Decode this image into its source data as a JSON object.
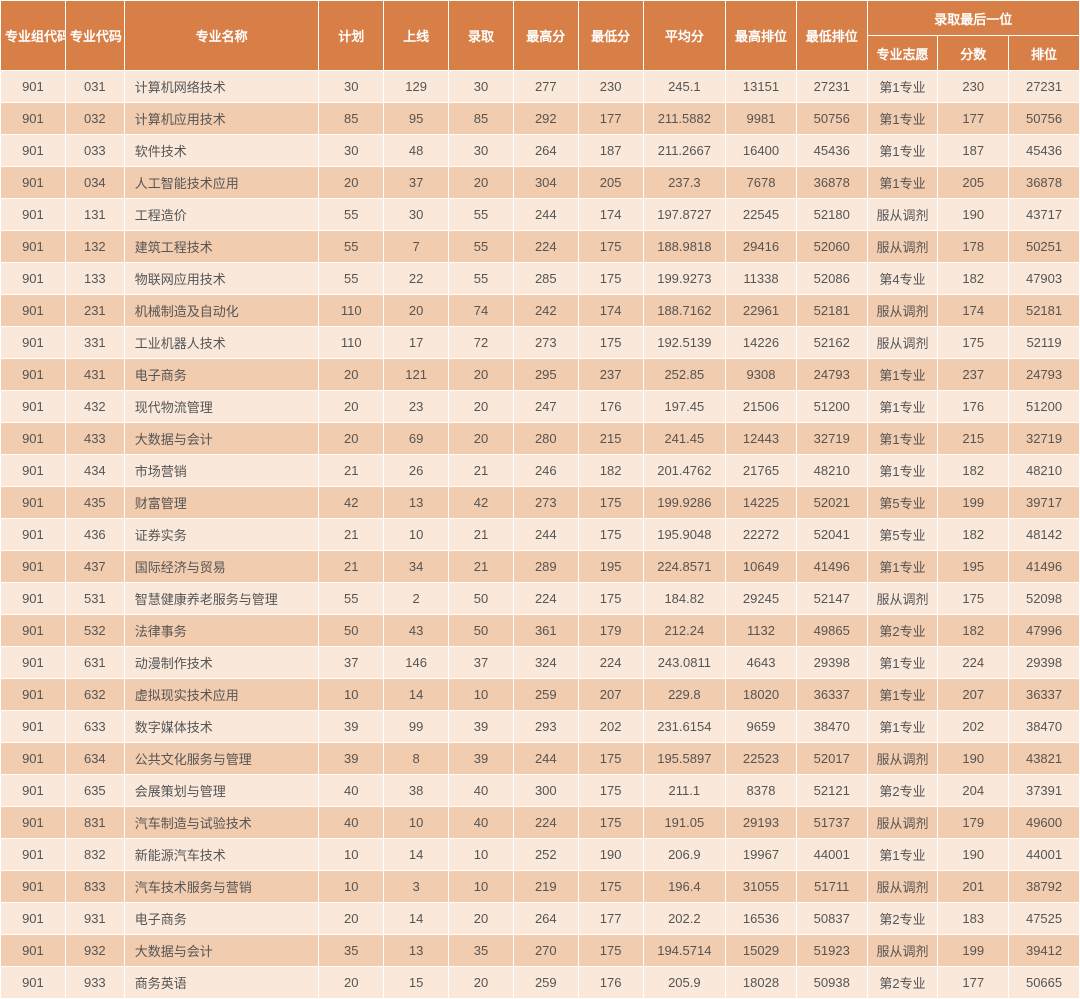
{
  "table": {
    "header": {
      "group_code": "专业组代码",
      "major_code": "专业代码",
      "major_name": "专业名称",
      "plan": "计划",
      "online": "上线",
      "admit": "录取",
      "max_score": "最高分",
      "min_score": "最低分",
      "avg_score": "平均分",
      "max_rank": "最高排位",
      "min_rank": "最低排位",
      "last_group": "录取最后一位",
      "last_pref": "专业志愿",
      "last_score": "分数",
      "last_rank": "排位"
    },
    "colors": {
      "header_bg": "#d77f46",
      "header_fg": "#ffffff",
      "row_odd_bg": "#fae9db",
      "row_even_bg": "#f2ccae",
      "cell_fg": "#555555",
      "border": "#ffffff"
    },
    "rows": [
      {
        "group": "901",
        "code": "031",
        "name": "计算机网络技术",
        "plan": "30",
        "online": "129",
        "admit": "30",
        "max": "277",
        "min": "230",
        "avg": "245.1",
        "maxrank": "13151",
        "minrank": "27231",
        "pref": "第1专业",
        "lscore": "230",
        "lrank": "27231"
      },
      {
        "group": "901",
        "code": "032",
        "name": "计算机应用技术",
        "plan": "85",
        "online": "95",
        "admit": "85",
        "max": "292",
        "min": "177",
        "avg": "211.5882",
        "maxrank": "9981",
        "minrank": "50756",
        "pref": "第1专业",
        "lscore": "177",
        "lrank": "50756"
      },
      {
        "group": "901",
        "code": "033",
        "name": "软件技术",
        "plan": "30",
        "online": "48",
        "admit": "30",
        "max": "264",
        "min": "187",
        "avg": "211.2667",
        "maxrank": "16400",
        "minrank": "45436",
        "pref": "第1专业",
        "lscore": "187",
        "lrank": "45436"
      },
      {
        "group": "901",
        "code": "034",
        "name": "人工智能技术应用",
        "plan": "20",
        "online": "37",
        "admit": "20",
        "max": "304",
        "min": "205",
        "avg": "237.3",
        "maxrank": "7678",
        "minrank": "36878",
        "pref": "第1专业",
        "lscore": "205",
        "lrank": "36878"
      },
      {
        "group": "901",
        "code": "131",
        "name": "工程造价",
        "plan": "55",
        "online": "30",
        "admit": "55",
        "max": "244",
        "min": "174",
        "avg": "197.8727",
        "maxrank": "22545",
        "minrank": "52180",
        "pref": "服从调剂",
        "lscore": "190",
        "lrank": "43717"
      },
      {
        "group": "901",
        "code": "132",
        "name": "建筑工程技术",
        "plan": "55",
        "online": "7",
        "admit": "55",
        "max": "224",
        "min": "175",
        "avg": "188.9818",
        "maxrank": "29416",
        "minrank": "52060",
        "pref": "服从调剂",
        "lscore": "178",
        "lrank": "50251"
      },
      {
        "group": "901",
        "code": "133",
        "name": "物联网应用技术",
        "plan": "55",
        "online": "22",
        "admit": "55",
        "max": "285",
        "min": "175",
        "avg": "199.9273",
        "maxrank": "11338",
        "minrank": "52086",
        "pref": "第4专业",
        "lscore": "182",
        "lrank": "47903"
      },
      {
        "group": "901",
        "code": "231",
        "name": "机械制造及自动化",
        "plan": "110",
        "online": "20",
        "admit": "74",
        "max": "242",
        "min": "174",
        "avg": "188.7162",
        "maxrank": "22961",
        "minrank": "52181",
        "pref": "服从调剂",
        "lscore": "174",
        "lrank": "52181"
      },
      {
        "group": "901",
        "code": "331",
        "name": "工业机器人技术",
        "plan": "110",
        "online": "17",
        "admit": "72",
        "max": "273",
        "min": "175",
        "avg": "192.5139",
        "maxrank": "14226",
        "minrank": "52162",
        "pref": "服从调剂",
        "lscore": "175",
        "lrank": "52119"
      },
      {
        "group": "901",
        "code": "431",
        "name": "电子商务",
        "plan": "20",
        "online": "121",
        "admit": "20",
        "max": "295",
        "min": "237",
        "avg": "252.85",
        "maxrank": "9308",
        "minrank": "24793",
        "pref": "第1专业",
        "lscore": "237",
        "lrank": "24793"
      },
      {
        "group": "901",
        "code": "432",
        "name": "现代物流管理",
        "plan": "20",
        "online": "23",
        "admit": "20",
        "max": "247",
        "min": "176",
        "avg": "197.45",
        "maxrank": "21506",
        "minrank": "51200",
        "pref": "第1专业",
        "lscore": "176",
        "lrank": "51200"
      },
      {
        "group": "901",
        "code": "433",
        "name": "大数据与会计",
        "plan": "20",
        "online": "69",
        "admit": "20",
        "max": "280",
        "min": "215",
        "avg": "241.45",
        "maxrank": "12443",
        "minrank": "32719",
        "pref": "第1专业",
        "lscore": "215",
        "lrank": "32719"
      },
      {
        "group": "901",
        "code": "434",
        "name": "市场营销",
        "plan": "21",
        "online": "26",
        "admit": "21",
        "max": "246",
        "min": "182",
        "avg": "201.4762",
        "maxrank": "21765",
        "minrank": "48210",
        "pref": "第1专业",
        "lscore": "182",
        "lrank": "48210"
      },
      {
        "group": "901",
        "code": "435",
        "name": "财富管理",
        "plan": "42",
        "online": "13",
        "admit": "42",
        "max": "273",
        "min": "175",
        "avg": "199.9286",
        "maxrank": "14225",
        "minrank": "52021",
        "pref": "第5专业",
        "lscore": "199",
        "lrank": "39717"
      },
      {
        "group": "901",
        "code": "436",
        "name": "证券实务",
        "plan": "21",
        "online": "10",
        "admit": "21",
        "max": "244",
        "min": "175",
        "avg": "195.9048",
        "maxrank": "22272",
        "minrank": "52041",
        "pref": "第5专业",
        "lscore": "182",
        "lrank": "48142"
      },
      {
        "group": "901",
        "code": "437",
        "name": "国际经济与贸易",
        "plan": "21",
        "online": "34",
        "admit": "21",
        "max": "289",
        "min": "195",
        "avg": "224.8571",
        "maxrank": "10649",
        "minrank": "41496",
        "pref": "第1专业",
        "lscore": "195",
        "lrank": "41496"
      },
      {
        "group": "901",
        "code": "531",
        "name": "智慧健康养老服务与管理",
        "plan": "55",
        "online": "2",
        "admit": "50",
        "max": "224",
        "min": "175",
        "avg": "184.82",
        "maxrank": "29245",
        "minrank": "52147",
        "pref": "服从调剂",
        "lscore": "175",
        "lrank": "52098"
      },
      {
        "group": "901",
        "code": "532",
        "name": "法律事务",
        "plan": "50",
        "online": "43",
        "admit": "50",
        "max": "361",
        "min": "179",
        "avg": "212.24",
        "maxrank": "1132",
        "minrank": "49865",
        "pref": "第2专业",
        "lscore": "182",
        "lrank": "47996"
      },
      {
        "group": "901",
        "code": "631",
        "name": "动漫制作技术",
        "plan": "37",
        "online": "146",
        "admit": "37",
        "max": "324",
        "min": "224",
        "avg": "243.0811",
        "maxrank": "4643",
        "minrank": "29398",
        "pref": "第1专业",
        "lscore": "224",
        "lrank": "29398"
      },
      {
        "group": "901",
        "code": "632",
        "name": "虚拟现实技术应用",
        "plan": "10",
        "online": "14",
        "admit": "10",
        "max": "259",
        "min": "207",
        "avg": "229.8",
        "maxrank": "18020",
        "minrank": "36337",
        "pref": "第1专业",
        "lscore": "207",
        "lrank": "36337"
      },
      {
        "group": "901",
        "code": "633",
        "name": "数字媒体技术",
        "plan": "39",
        "online": "99",
        "admit": "39",
        "max": "293",
        "min": "202",
        "avg": "231.6154",
        "maxrank": "9659",
        "minrank": "38470",
        "pref": "第1专业",
        "lscore": "202",
        "lrank": "38470"
      },
      {
        "group": "901",
        "code": "634",
        "name": "公共文化服务与管理",
        "plan": "39",
        "online": "8",
        "admit": "39",
        "max": "244",
        "min": "175",
        "avg": "195.5897",
        "maxrank": "22523",
        "minrank": "52017",
        "pref": "服从调剂",
        "lscore": "190",
        "lrank": "43821"
      },
      {
        "group": "901",
        "code": "635",
        "name": "会展策划与管理",
        "plan": "40",
        "online": "38",
        "admit": "40",
        "max": "300",
        "min": "175",
        "avg": "211.1",
        "maxrank": "8378",
        "minrank": "52121",
        "pref": "第2专业",
        "lscore": "204",
        "lrank": "37391"
      },
      {
        "group": "901",
        "code": "831",
        "name": "汽车制造与试验技术",
        "plan": "40",
        "online": "10",
        "admit": "40",
        "max": "224",
        "min": "175",
        "avg": "191.05",
        "maxrank": "29193",
        "minrank": "51737",
        "pref": "服从调剂",
        "lscore": "179",
        "lrank": "49600"
      },
      {
        "group": "901",
        "code": "832",
        "name": "新能源汽车技术",
        "plan": "10",
        "online": "14",
        "admit": "10",
        "max": "252",
        "min": "190",
        "avg": "206.9",
        "maxrank": "19967",
        "minrank": "44001",
        "pref": "第1专业",
        "lscore": "190",
        "lrank": "44001"
      },
      {
        "group": "901",
        "code": "833",
        "name": "汽车技术服务与营销",
        "plan": "10",
        "online": "3",
        "admit": "10",
        "max": "219",
        "min": "175",
        "avg": "196.4",
        "maxrank": "31055",
        "minrank": "51711",
        "pref": "服从调剂",
        "lscore": "201",
        "lrank": "38792"
      },
      {
        "group": "901",
        "code": "931",
        "name": "电子商务",
        "plan": "20",
        "online": "14",
        "admit": "20",
        "max": "264",
        "min": "177",
        "avg": "202.2",
        "maxrank": "16536",
        "minrank": "50837",
        "pref": "第2专业",
        "lscore": "183",
        "lrank": "47525"
      },
      {
        "group": "901",
        "code": "932",
        "name": "大数据与会计",
        "plan": "35",
        "online": "13",
        "admit": "35",
        "max": "270",
        "min": "175",
        "avg": "194.5714",
        "maxrank": "15029",
        "minrank": "51923",
        "pref": "服从调剂",
        "lscore": "199",
        "lrank": "39412"
      },
      {
        "group": "901",
        "code": "933",
        "name": "商务英语",
        "plan": "20",
        "online": "15",
        "admit": "20",
        "max": "259",
        "min": "176",
        "avg": "205.9",
        "maxrank": "18028",
        "minrank": "50938",
        "pref": "第2专业",
        "lscore": "177",
        "lrank": "50665"
      }
    ]
  }
}
